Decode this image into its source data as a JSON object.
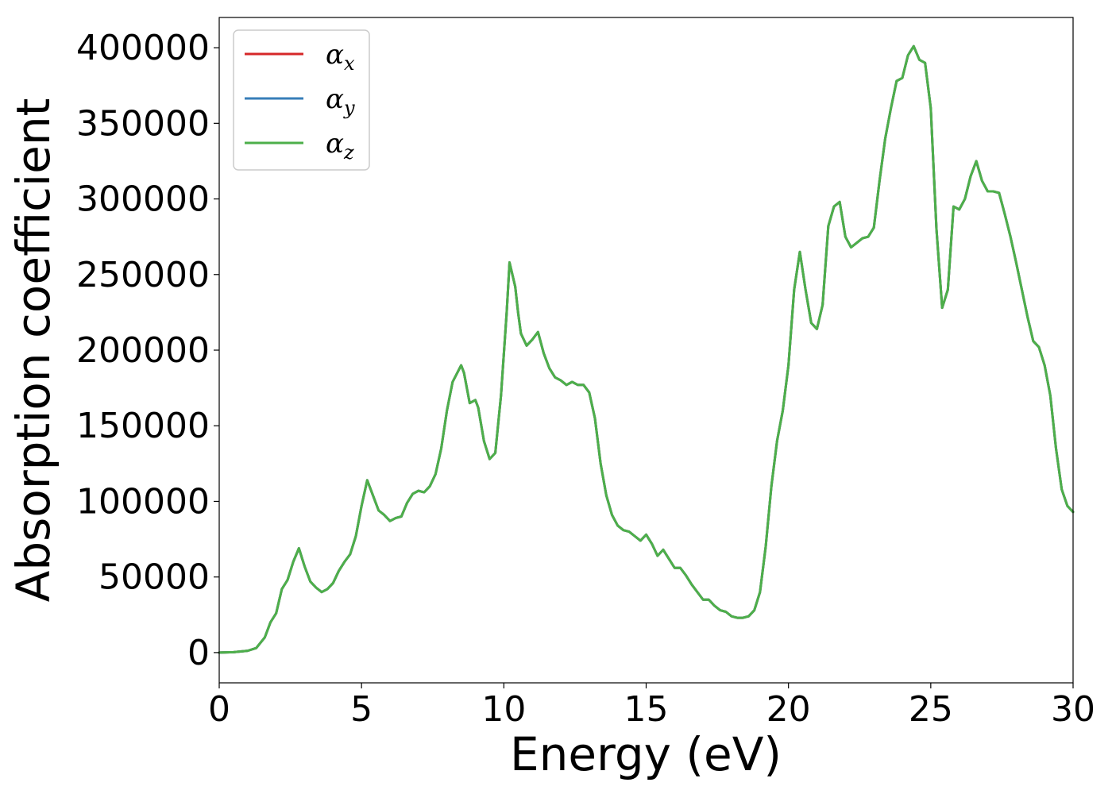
{
  "chart_data": {
    "type": "line",
    "title": "",
    "xlabel": "Energy (eV)",
    "ylabel": "Absorption coefficient",
    "xlim": [
      0,
      30
    ],
    "ylim": [
      -20000,
      420000
    ],
    "xticks": [
      0,
      5,
      10,
      15,
      20,
      25,
      30
    ],
    "xtick_labels": [
      "0",
      "5",
      "10",
      "15",
      "20",
      "25",
      "30"
    ],
    "yticks": [
      0,
      50000,
      100000,
      150000,
      200000,
      250000,
      300000,
      350000,
      400000
    ],
    "ytick_labels": [
      "0",
      "50000",
      "100000",
      "150000",
      "200000",
      "250000",
      "300000",
      "350000",
      "400000"
    ],
    "grid": false,
    "legend_position": "top-left",
    "x": [
      0,
      0.5,
      1.0,
      1.3,
      1.6,
      1.8,
      2.0,
      2.2,
      2.4,
      2.6,
      2.8,
      3.0,
      3.2,
      3.4,
      3.6,
      3.8,
      4.0,
      4.2,
      4.4,
      4.6,
      4.8,
      5.0,
      5.2,
      5.4,
      5.6,
      5.8,
      6.0,
      6.2,
      6.4,
      6.6,
      6.8,
      7.0,
      7.2,
      7.4,
      7.6,
      7.8,
      8.0,
      8.2,
      8.5,
      8.6,
      8.8,
      9.0,
      9.1,
      9.3,
      9.5,
      9.7,
      9.9,
      10.1,
      10.2,
      10.4,
      10.5,
      10.6,
      10.8,
      11.0,
      11.2,
      11.4,
      11.6,
      11.8,
      12.0,
      12.2,
      12.4,
      12.6,
      12.8,
      13.0,
      13.2,
      13.4,
      13.6,
      13.8,
      14.0,
      14.2,
      14.4,
      14.6,
      14.8,
      15.0,
      15.2,
      15.4,
      15.6,
      15.8,
      16.0,
      16.2,
      16.4,
      16.6,
      16.8,
      17.0,
      17.2,
      17.4,
      17.6,
      17.8,
      18.0,
      18.2,
      18.4,
      18.6,
      18.8,
      19.0,
      19.2,
      19.4,
      19.6,
      19.8,
      20.0,
      20.2,
      20.4,
      20.6,
      20.8,
      21.0,
      21.2,
      21.4,
      21.6,
      21.8,
      22.0,
      22.2,
      22.4,
      22.6,
      22.8,
      23.0,
      23.2,
      23.4,
      23.6,
      23.8,
      24.0,
      24.2,
      24.4,
      24.6,
      24.8,
      25.0,
      25.2,
      25.4,
      25.6,
      25.8,
      26.0,
      26.2,
      26.4,
      26.6,
      26.8,
      27.0,
      27.2,
      27.4,
      27.6,
      27.8,
      28.0,
      28.2,
      28.4,
      28.6,
      28.8,
      29.0,
      29.2,
      29.4,
      29.6,
      29.8,
      30.0
    ],
    "series": [
      {
        "name": "α_x",
        "color": "#d62728",
        "y": [
          0,
          300,
          1200,
          3000,
          10000,
          20000,
          26000,
          42000,
          48000,
          60000,
          69000,
          57000,
          47000,
          43000,
          40000,
          42000,
          46000,
          54000,
          60000,
          65000,
          77000,
          97000,
          114000,
          104000,
          94000,
          91000,
          87000,
          89000,
          90000,
          99000,
          105000,
          107000,
          106000,
          110000,
          118000,
          135000,
          160000,
          179000,
          190000,
          185000,
          165000,
          167000,
          162000,
          140000,
          128000,
          132000,
          170000,
          225000,
          258000,
          242000,
          225000,
          211000,
          203000,
          207000,
          212000,
          198000,
          188000,
          182000,
          180000,
          177000,
          179000,
          177000,
          177000,
          172000,
          155000,
          125000,
          104000,
          91000,
          84000,
          81000,
          80000,
          77000,
          74000,
          78000,
          72000,
          64000,
          68000,
          62000,
          56000,
          56000,
          51000,
          45000,
          40000,
          35000,
          35000,
          31000,
          28000,
          27000,
          24000,
          23000,
          23000,
          24000,
          28000,
          40000,
          70000,
          110000,
          140000,
          160000,
          190000,
          240000,
          265000,
          240000,
          218000,
          214000,
          230000,
          282000,
          295000,
          298000,
          275000,
          268000,
          271000,
          274000,
          275000,
          281000,
          312000,
          340000,
          360000,
          378000,
          380000,
          395000,
          401000,
          392000,
          390000,
          360000,
          280000,
          228000,
          240000,
          295000,
          293000,
          300000,
          315000,
          325000,
          312000,
          305000,
          305000,
          304000,
          290000,
          275000,
          258000,
          240000,
          222000,
          206000,
          202000,
          190000,
          170000,
          135000,
          108000,
          97000,
          93000
        ],
        "display": "hidden-under"
      },
      {
        "name": "α_y",
        "color": "#377eb8",
        "y": [
          0,
          300,
          1200,
          3000,
          10000,
          20000,
          26000,
          42000,
          48000,
          60000,
          69000,
          57000,
          47000,
          43000,
          40000,
          42000,
          46000,
          54000,
          60000,
          65000,
          77000,
          97000,
          114000,
          104000,
          94000,
          91000,
          87000,
          89000,
          90000,
          99000,
          105000,
          107000,
          106000,
          110000,
          118000,
          135000,
          160000,
          179000,
          190000,
          185000,
          165000,
          167000,
          162000,
          140000,
          128000,
          132000,
          170000,
          225000,
          258000,
          242000,
          225000,
          211000,
          203000,
          207000,
          212000,
          198000,
          188000,
          182000,
          180000,
          177000,
          179000,
          177000,
          177000,
          172000,
          155000,
          125000,
          104000,
          91000,
          84000,
          81000,
          80000,
          77000,
          74000,
          78000,
          72000,
          64000,
          68000,
          62000,
          56000,
          56000,
          51000,
          45000,
          40000,
          35000,
          35000,
          31000,
          28000,
          27000,
          24000,
          23000,
          23000,
          24000,
          28000,
          40000,
          70000,
          110000,
          140000,
          160000,
          190000,
          240000,
          265000,
          240000,
          218000,
          214000,
          230000,
          282000,
          295000,
          298000,
          275000,
          268000,
          271000,
          274000,
          275000,
          281000,
          312000,
          340000,
          360000,
          378000,
          380000,
          395000,
          401000,
          392000,
          390000,
          360000,
          280000,
          228000,
          240000,
          295000,
          293000,
          300000,
          315000,
          325000,
          312000,
          305000,
          305000,
          304000,
          290000,
          275000,
          258000,
          240000,
          222000,
          206000,
          202000,
          190000,
          170000,
          135000,
          108000,
          97000,
          93000
        ],
        "display": "hidden-under"
      },
      {
        "name": "α_z",
        "color": "#4daf4a",
        "y": [
          0,
          300,
          1200,
          3000,
          10000,
          20000,
          26000,
          42000,
          48000,
          60000,
          69000,
          57000,
          47000,
          43000,
          40000,
          42000,
          46000,
          54000,
          60000,
          65000,
          77000,
          97000,
          114000,
          104000,
          94000,
          91000,
          87000,
          89000,
          90000,
          99000,
          105000,
          107000,
          106000,
          110000,
          118000,
          135000,
          160000,
          179000,
          190000,
          185000,
          165000,
          167000,
          162000,
          140000,
          128000,
          132000,
          170000,
          225000,
          258000,
          242000,
          225000,
          211000,
          203000,
          207000,
          212000,
          198000,
          188000,
          182000,
          180000,
          177000,
          179000,
          177000,
          177000,
          172000,
          155000,
          125000,
          104000,
          91000,
          84000,
          81000,
          80000,
          77000,
          74000,
          78000,
          72000,
          64000,
          68000,
          62000,
          56000,
          56000,
          51000,
          45000,
          40000,
          35000,
          35000,
          31000,
          28000,
          27000,
          24000,
          23000,
          23000,
          24000,
          28000,
          40000,
          70000,
          110000,
          140000,
          160000,
          190000,
          240000,
          265000,
          240000,
          218000,
          214000,
          230000,
          282000,
          295000,
          298000,
          275000,
          268000,
          271000,
          274000,
          275000,
          281000,
          312000,
          340000,
          360000,
          378000,
          380000,
          395000,
          401000,
          392000,
          390000,
          360000,
          280000,
          228000,
          240000,
          295000,
          293000,
          300000,
          315000,
          325000,
          312000,
          305000,
          305000,
          304000,
          290000,
          275000,
          258000,
          240000,
          222000,
          206000,
          202000,
          190000,
          170000,
          135000,
          108000,
          97000,
          93000
        ],
        "display": "visible"
      }
    ],
    "legend": [
      {
        "symbol": "α",
        "sub": "x",
        "color": "#d62728"
      },
      {
        "symbol": "α",
        "sub": "y",
        "color": "#377eb8"
      },
      {
        "symbol": "α",
        "sub": "z",
        "color": "#4daf4a"
      }
    ]
  }
}
